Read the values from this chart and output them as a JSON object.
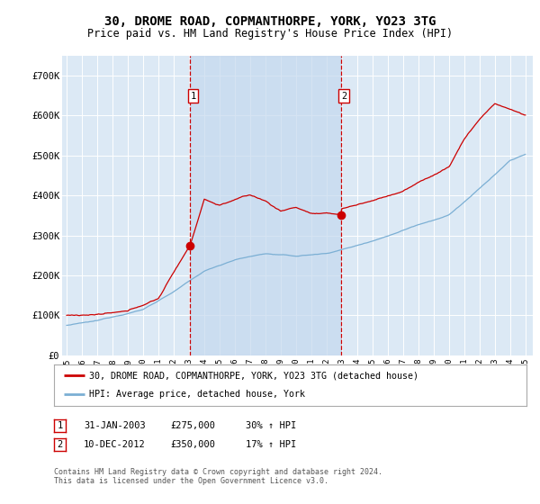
{
  "title": "30, DROME ROAD, COPMANTHORPE, YORK, YO23 3TG",
  "subtitle": "Price paid vs. HM Land Registry's House Price Index (HPI)",
  "title_fontsize": 10,
  "subtitle_fontsize": 8.5,
  "background_color": "#ffffff",
  "plot_bg_color": "#dce9f5",
  "grid_color": "#ffffff",
  "red_line_color": "#cc0000",
  "blue_line_color": "#7bafd4",
  "vline_color": "#cc0000",
  "shade_color": "#c5d8ee",
  "sale1_x": 2003.08,
  "sale1_y": 275000,
  "sale2_x": 2012.93,
  "sale2_y": 350000,
  "ylim": [
    0,
    750000
  ],
  "xlim": [
    1994.7,
    2025.5
  ],
  "yticks": [
    0,
    100000,
    200000,
    300000,
    400000,
    500000,
    600000,
    700000
  ],
  "ytick_labels": [
    "£0",
    "£100K",
    "£200K",
    "£300K",
    "£400K",
    "£500K",
    "£600K",
    "£700K"
  ],
  "xticks": [
    1995,
    1996,
    1997,
    1998,
    1999,
    2000,
    2001,
    2002,
    2003,
    2004,
    2005,
    2006,
    2007,
    2008,
    2009,
    2010,
    2011,
    2012,
    2013,
    2014,
    2015,
    2016,
    2017,
    2018,
    2019,
    2020,
    2021,
    2022,
    2023,
    2024,
    2025
  ],
  "legend_label_red": "30, DROME ROAD, COPMANTHORPE, YORK, YO23 3TG (detached house)",
  "legend_label_blue": "HPI: Average price, detached house, York",
  "table_row1": [
    "1",
    "31-JAN-2003",
    "£275,000",
    "30% ↑ HPI"
  ],
  "table_row2": [
    "2",
    "10-DEC-2012",
    "£350,000",
    "17% ↑ HPI"
  ],
  "footer": "Contains HM Land Registry data © Crown copyright and database right 2024.\nThis data is licensed under the Open Government Licence v3.0."
}
